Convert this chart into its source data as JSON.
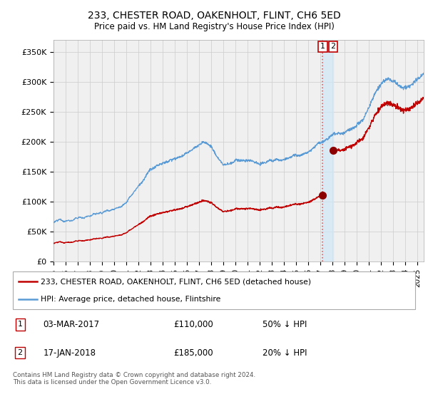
{
  "title": "233, CHESTER ROAD, OAKENHOLT, FLINT, CH6 5ED",
  "subtitle": "Price paid vs. HM Land Registry's House Price Index (HPI)",
  "legend_line1": "233, CHESTER ROAD, OAKENHOLT, FLINT, CH6 5ED (detached house)",
  "legend_line2": "HPI: Average price, detached house, Flintshire",
  "footnote": "Contains HM Land Registry data © Crown copyright and database right 2024.\nThis data is licensed under the Open Government Licence v3.0.",
  "sale1_label": "1",
  "sale1_date": "03-MAR-2017",
  "sale1_price": "£110,000",
  "sale1_hpi": "50% ↓ HPI",
  "sale1_date_num": 2017.17,
  "sale1_price_val": 110000,
  "sale2_label": "2",
  "sale2_date": "17-JAN-2018",
  "sale2_price": "£185,000",
  "sale2_hpi": "20% ↓ HPI",
  "sale2_date_num": 2018.04,
  "sale2_price_val": 185000,
  "hpi_color": "#5b9bd5",
  "price_color": "#c00000",
  "marker_color": "#8b0000",
  "dashed_color": "#e06060",
  "shade_color": "#d0e8f8",
  "ylim": [
    0,
    370000
  ],
  "xlim_start": 1995.0,
  "xlim_end": 2025.5,
  "yticks": [
    0,
    50000,
    100000,
    150000,
    200000,
    250000,
    300000,
    350000
  ],
  "ytick_labels": [
    "£0",
    "£50K",
    "£100K",
    "£150K",
    "£200K",
    "£250K",
    "£300K",
    "£350K"
  ],
  "bg_color": "#f0f0f0"
}
